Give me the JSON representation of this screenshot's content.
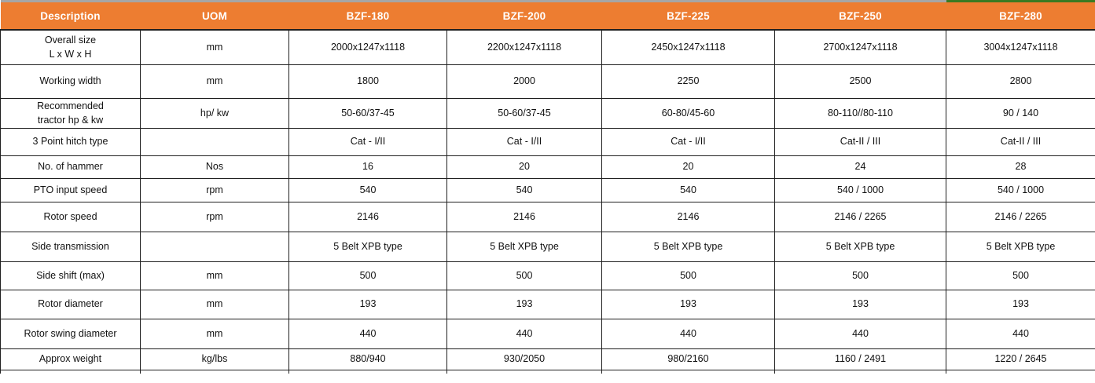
{
  "table": {
    "colors": {
      "header_bg": "#ED7D31",
      "header_text": "#FFFFFF",
      "top_border_gray": "#A6A6A6",
      "top_border_green_last_column": "#3A7A22",
      "grid": "#1F1F1F"
    },
    "columns": [
      {
        "label": "Description"
      },
      {
        "label": "UOM"
      },
      {
        "label": "BZF-180"
      },
      {
        "label": "BZF-200"
      },
      {
        "label": "BZF-225"
      },
      {
        "label": "BZF-250"
      },
      {
        "label": "BZF-280"
      }
    ],
    "rows": [
      {
        "description": "Overall size\nL x W x H",
        "uom": "mm",
        "values": [
          "2000x1247x1118",
          "2200x1247x1118",
          "2450x1247x1118",
          "2700x1247x1118",
          "3004x1247x1118"
        ]
      },
      {
        "description": "Working width",
        "uom": "mm",
        "values": [
          "1800",
          "2000",
          "2250",
          "2500",
          "2800"
        ]
      },
      {
        "description": "Recommended\ntractor hp & kw",
        "uom": "hp/ kw",
        "values": [
          "50-60/37-45",
          "50-60/37-45",
          "60-80/45-60",
          "80-110//80-110",
          "90 / 140"
        ]
      },
      {
        "description": "3 Point hitch type",
        "uom": "",
        "values": [
          "Cat - I/II",
          "Cat - I/II",
          "Cat - I/II",
          "Cat-II / III",
          "Cat-II / III"
        ]
      },
      {
        "description": "No. of hammer",
        "uom": "Nos",
        "values": [
          "16",
          "20",
          "20",
          "24",
          "28"
        ]
      },
      {
        "description": "PTO input speed",
        "uom": "rpm",
        "values": [
          "540",
          "540",
          "540",
          "540 / 1000",
          "540 / 1000"
        ]
      },
      {
        "description": "Rotor speed",
        "uom": "rpm",
        "values": [
          "2146",
          "2146",
          "2146",
          "2146 / 2265",
          "2146 / 2265"
        ]
      },
      {
        "description": "Side transmission",
        "uom": "",
        "values": [
          "5 Belt XPB type",
          "5 Belt XPB type",
          "5 Belt XPB type",
          "5 Belt XPB type",
          "5 Belt XPB type"
        ]
      },
      {
        "description": "Side shift (max)",
        "uom": "mm",
        "values": [
          "500",
          "500",
          "500",
          "500",
          "500"
        ]
      },
      {
        "description": "Rotor diameter",
        "uom": "mm",
        "values": [
          "193",
          "193",
          "193",
          "193",
          "193"
        ]
      },
      {
        "description": "Rotor swing diameter",
        "uom": "mm",
        "values": [
          "440",
          "440",
          "440",
          "440",
          "440"
        ]
      },
      {
        "description": "Approx weight",
        "uom": "kg/lbs",
        "values": [
          "880/940",
          "930/2050",
          "980/2160",
          "1160 / 2491",
          "1220 / 2645"
        ]
      }
    ]
  }
}
